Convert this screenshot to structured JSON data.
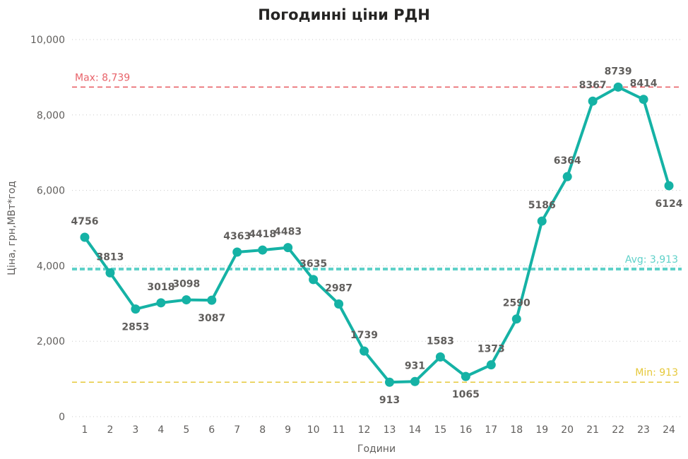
{
  "chart_data": {
    "type": "line",
    "title": "Погодинні ціни РДН",
    "xlabel": "Години",
    "ylabel": "Ціна, грн,МВт*год",
    "categories": [
      "1",
      "2",
      "3",
      "4",
      "5",
      "6",
      "7",
      "8",
      "9",
      "10",
      "11",
      "12",
      "13",
      "14",
      "15",
      "16",
      "17",
      "18",
      "19",
      "20",
      "21",
      "22",
      "23",
      "24"
    ],
    "series": [
      {
        "values": [
          4756,
          3813,
          2853,
          3018,
          3098,
          3087,
          4363,
          4418,
          4483,
          3635,
          2987,
          1739,
          913,
          931,
          1583,
          1065,
          1373,
          2590,
          5186,
          6364,
          8367,
          8739,
          8414,
          6124
        ],
        "data_labels": [
          "4756",
          "3813",
          "2853",
          "3018",
          "3098",
          "3087",
          "4363",
          "4418",
          "4483",
          "3635",
          "2987",
          "1739",
          "913",
          "931",
          "1583",
          "1065",
          "1373",
          "2590",
          "5186",
          "6364",
          "8367",
          "8739",
          "8414",
          "6124"
        ],
        "color": "#15b2a5"
      }
    ],
    "y_ticks": [
      {
        "value": 0,
        "label": "0"
      },
      {
        "value": 2000,
        "label": "2,000"
      },
      {
        "value": 4000,
        "label": "4,000"
      },
      {
        "value": 6000,
        "label": "6,000"
      },
      {
        "value": 8000,
        "label": "8,000"
      },
      {
        "value": 10000,
        "label": "10,000"
      }
    ],
    "ylim": [
      0,
      10000
    ],
    "grid": true,
    "reference_lines": [
      {
        "name": "max",
        "label": "Max: 8,739",
        "value": 8739,
        "color": "#e8636a",
        "label_side": "left"
      },
      {
        "name": "avg",
        "label": "Avg: 3,913",
        "value": 3913,
        "color": "#5fd1c9",
        "label_side": "right"
      },
      {
        "name": "min",
        "label": "Min: 913",
        "value": 913,
        "color": "#e6c83a",
        "label_side": "right"
      }
    ]
  }
}
